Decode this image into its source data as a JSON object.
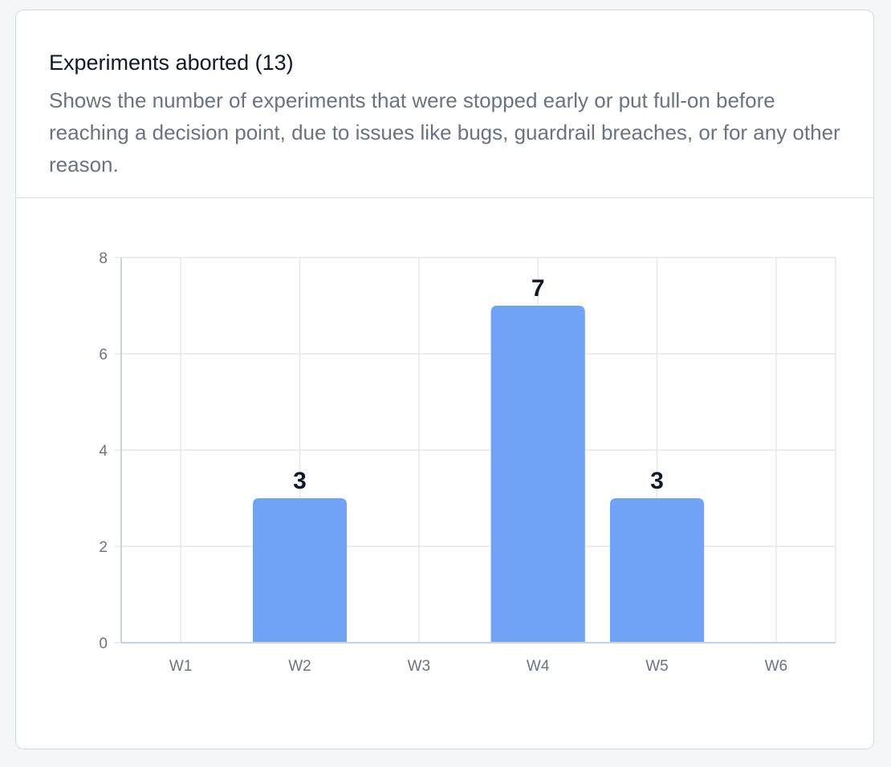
{
  "card": {
    "title": "Experiments aborted (13)",
    "description": "Shows the number of experiments that were stopped early or put full-on before reaching a decision point, due to issues like bugs, guardrail breaches, or for any other reason."
  },
  "chart_data": {
    "type": "bar",
    "title": "Experiments aborted (13)",
    "categories": [
      "W1",
      "W2",
      "W3",
      "W4",
      "W5",
      "W6"
    ],
    "values": [
      0,
      3,
      0,
      7,
      3,
      0
    ],
    "data_labels": [
      "",
      "3",
      "",
      "7",
      "3",
      ""
    ],
    "y_ticks": [
      "0",
      "2",
      "4",
      "6",
      "8"
    ],
    "ylim": [
      0,
      8
    ],
    "xlabel": "",
    "ylabel": "",
    "grid": true,
    "bar_color": "#70a2f5",
    "label_color": "#111827",
    "tick_color": "#6b7280",
    "grid_color": "#e5e7eb",
    "axis_color": "#c9d2e0"
  }
}
